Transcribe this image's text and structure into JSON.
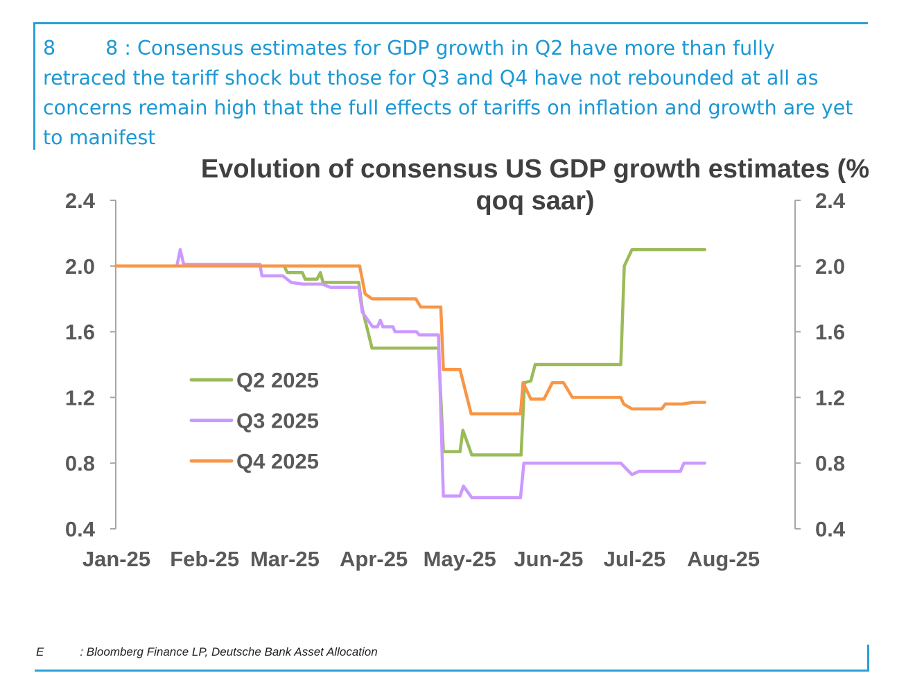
{
  "header": {
    "fig_num_a": "8",
    "fig_num_b": "8",
    "caption": ": Consensus estimates for GDP growth in Q2 have more than fully retraced the tariff shock but those for Q3 and Q4 have not rebounded at all as concerns remain high that the full effects of tariffs on inflation and growth are yet to manifest"
  },
  "footer": {
    "label": "E",
    "source": ": Bloomberg Finance LP, Deutsche Bank Asset Allocation"
  },
  "chart_data": {
    "type": "line",
    "title_line1": "Evolution of consensus US GDP growth estimates (%",
    "title_line2": "qoq saar)",
    "x_unit": "days since 1 Jan 2025",
    "xlim": [
      0,
      237
    ],
    "ylim": [
      0.4,
      2.4
    ],
    "yticks": [
      "2.4",
      "2.0",
      "1.6",
      "1.2",
      "0.8",
      "0.4"
    ],
    "ytick_values": [
      2.4,
      2.0,
      1.6,
      1.2,
      0.8,
      0.4
    ],
    "xticks": [
      {
        "label": "Jan-25",
        "day": 0
      },
      {
        "label": "Feb-25",
        "day": 31
      },
      {
        "label": "Mar-25",
        "day": 59
      },
      {
        "label": "Apr-25",
        "day": 90
      },
      {
        "label": "May-25",
        "day": 120
      },
      {
        "label": "Jun-25",
        "day": 151
      },
      {
        "label": "Jul-25",
        "day": 181
      },
      {
        "label": "Aug-25",
        "day": 212
      }
    ],
    "legend_position": "center-left",
    "series": [
      {
        "name": "Q2 2025",
        "color": "#9bbb59",
        "points": [
          [
            0,
            2.0
          ],
          [
            58.7,
            2.0
          ],
          [
            59.9,
            1.96
          ],
          [
            65.1,
            1.96
          ],
          [
            66.1,
            1.92
          ],
          [
            70.2,
            1.92
          ],
          [
            71.4,
            1.96
          ],
          [
            72.3,
            1.9
          ],
          [
            84.8,
            1.9
          ],
          [
            86,
            1.74
          ],
          [
            89.4,
            1.5
          ],
          [
            112.6,
            1.5
          ],
          [
            114.3,
            0.87
          ],
          [
            120.1,
            0.87
          ],
          [
            121.1,
            1.0
          ],
          [
            124.2,
            0.85
          ],
          [
            141.4,
            0.85
          ],
          [
            142.6,
            1.29
          ],
          [
            144.8,
            1.3
          ],
          [
            146.3,
            1.4
          ],
          [
            176.2,
            1.4
          ],
          [
            177.4,
            2.0
          ],
          [
            180.1,
            2.1
          ],
          [
            205.5,
            2.1
          ]
        ]
      },
      {
        "name": "Q3 2025",
        "color": "#cc99ff",
        "points": [
          [
            0,
            2.0
          ],
          [
            21.3,
            2.0
          ],
          [
            22.5,
            2.1
          ],
          [
            23.7,
            2.01
          ],
          [
            50.3,
            2.01
          ],
          [
            51,
            1.94
          ],
          [
            58.3,
            1.94
          ],
          [
            61.2,
            1.9
          ],
          [
            65.3,
            1.89
          ],
          [
            72,
            1.89
          ],
          [
            74.9,
            1.87
          ],
          [
            84.8,
            1.87
          ],
          [
            86,
            1.72
          ],
          [
            89.6,
            1.63
          ],
          [
            91.3,
            1.63
          ],
          [
            92.3,
            1.67
          ],
          [
            93.2,
            1.63
          ],
          [
            96.7,
            1.63
          ],
          [
            97.4,
            1.6
          ],
          [
            104.9,
            1.6
          ],
          [
            105.9,
            1.58
          ],
          [
            112.6,
            1.58
          ],
          [
            114.3,
            0.6
          ],
          [
            120.1,
            0.6
          ],
          [
            121.3,
            0.66
          ],
          [
            124.2,
            0.59
          ],
          [
            141.2,
            0.59
          ],
          [
            142.4,
            0.8
          ],
          [
            176.2,
            0.8
          ],
          [
            180.1,
            0.73
          ],
          [
            182.5,
            0.75
          ],
          [
            197,
            0.75
          ],
          [
            198.2,
            0.8
          ],
          [
            205.5,
            0.8
          ]
        ]
      },
      {
        "name": "Q4 2025",
        "color": "#f79646",
        "points": [
          [
            0,
            2.0
          ],
          [
            85.1,
            2.0
          ],
          [
            87,
            1.83
          ],
          [
            89.4,
            1.8
          ],
          [
            104.7,
            1.8
          ],
          [
            106.4,
            1.75
          ],
          [
            113.4,
            1.75
          ],
          [
            114.3,
            1.37
          ],
          [
            120.1,
            1.37
          ],
          [
            124,
            1.1
          ],
          [
            141.2,
            1.1
          ],
          [
            142.1,
            1.29
          ],
          [
            144.8,
            1.19
          ],
          [
            149.4,
            1.19
          ],
          [
            152.3,
            1.29
          ],
          [
            156.2,
            1.29
          ],
          [
            159.3,
            1.2
          ],
          [
            176.2,
            1.2
          ],
          [
            177.2,
            1.16
          ],
          [
            180.1,
            1.13
          ],
          [
            190.5,
            1.13
          ],
          [
            191.7,
            1.16
          ],
          [
            197.7,
            1.16
          ],
          [
            201.4,
            1.17
          ],
          [
            205.5,
            1.17
          ]
        ]
      }
    ]
  }
}
